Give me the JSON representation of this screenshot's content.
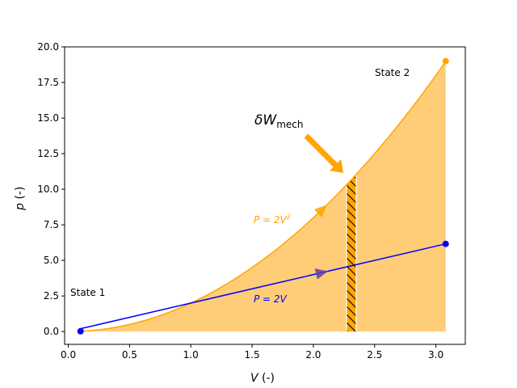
{
  "chart_data": {
    "type": "area",
    "xlabel_sym": "V",
    "xlabel_unit": " (-)",
    "ylabel_sym": "p",
    "ylabel_unit": " (-)",
    "xlim": [
      -0.03,
      3.24
    ],
    "ylim": [
      -0.9,
      20.0
    ],
    "xticks": [
      0.0,
      0.5,
      1.0,
      1.5,
      2.0,
      2.5,
      3.0
    ],
    "xtick_labels": [
      "0.0",
      "0.5",
      "1.0",
      "1.5",
      "2.0",
      "2.5",
      "3.0"
    ],
    "yticks": [
      0.0,
      2.5,
      5.0,
      7.5,
      10.0,
      12.5,
      15.0,
      17.5,
      20.0
    ],
    "ytick_labels": [
      "0.0",
      "2.5",
      "5.0",
      "7.5",
      "10.0",
      "12.5",
      "15.0",
      "17.5",
      "20.0"
    ],
    "grid": false,
    "colors": {
      "curve": "#ffa500",
      "line": "#0000ff",
      "fill": "#ffcd78",
      "strip": "#ffa500",
      "hatch": "#000000"
    },
    "series": [
      {
        "name_main": "P = 2V",
        "name_sup": "2",
        "function": "2*V^2",
        "v_range": [
          0.1,
          3.08
        ]
      },
      {
        "name_main": "P = 2V",
        "name_sup": "",
        "function": "2*V",
        "v_range": [
          0.1,
          3.08
        ]
      }
    ],
    "fill_under": {
      "function": "2*V^2",
      "v_range": [
        0.1,
        3.08
      ]
    },
    "hatched_strip": {
      "v_range": [
        2.27,
        2.35
      ]
    },
    "state1": {
      "label": "State 1",
      "v": 0.1,
      "p": 0.02
    },
    "state2": {
      "label": "State 2",
      "v": 3.08,
      "p_curve": 19.0,
      "p_line": 6.16
    },
    "annotation": {
      "symbol": "δW",
      "subscript": "mech"
    }
  }
}
